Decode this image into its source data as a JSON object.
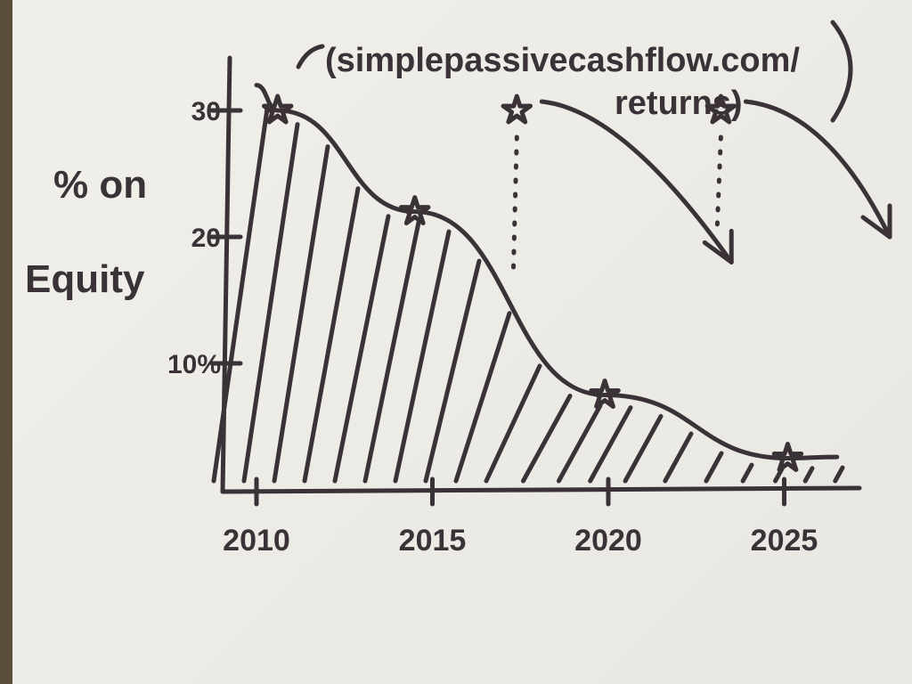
{
  "chart_data": {
    "type": "area",
    "title": "",
    "ylabel_line1": "% on",
    "ylabel_line2": "Equity",
    "xlabel": "",
    "xlim": [
      2009.5,
      2027
    ],
    "ylim": [
      0,
      33
    ],
    "x_ticks": [
      "2010",
      "2015",
      "2020",
      "2025"
    ],
    "y_ticks": [
      "10%",
      "20",
      "30"
    ],
    "grid": false,
    "hatched_area": true,
    "series": [
      {
        "points": [
          [
            2010.6,
            30
          ],
          [
            2014.5,
            22
          ],
          [
            2019.9,
            7.5
          ],
          [
            2025.1,
            2.5
          ]
        ],
        "marker": "star"
      }
    ],
    "annotations": {
      "line1": "(simplepassivecashflow.com/",
      "line2": "returns)",
      "resets": [
        {
          "star": [
            2017.4,
            30
          ],
          "dotted_to": 17,
          "arrow_to": [
            2023.5,
            18
          ]
        },
        {
          "star": [
            2023.2,
            30
          ],
          "dotted_to": 21,
          "arrow_to": [
            2028,
            20
          ]
        }
      ]
    },
    "ink_color": "#3a3236",
    "paper_color": "#efede8"
  }
}
